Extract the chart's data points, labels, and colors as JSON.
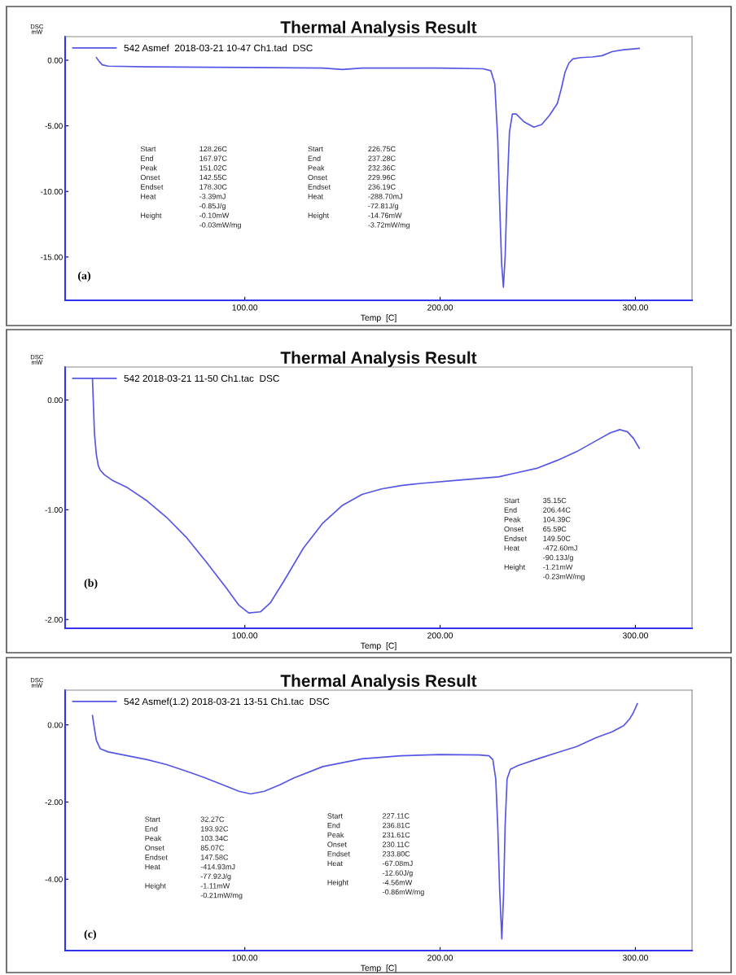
{
  "chart_data": [
    {
      "type": "line",
      "title": "Thermal Analysis Result",
      "xlabel": "Temp  [C]",
      "ylabel": "DSC\nmW",
      "xlim": [
        8,
        329
      ],
      "xticks": [
        {
          "value": 100,
          "label": "100.00"
        },
        {
          "value": 200,
          "label": "200.00"
        },
        {
          "value": 300,
          "label": "300.00"
        }
      ],
      "ylim": [
        -18.3,
        1.8
      ],
      "yticks": [
        {
          "value": 0,
          "label": "0.00"
        },
        {
          "value": -5,
          "label": "-5.00"
        },
        {
          "value": -10,
          "label": "-10.00"
        },
        {
          "value": -15,
          "label": "-15.00"
        }
      ],
      "legend": "top left",
      "grid": false,
      "series": [
        {
          "name": "542 Asmef  2018-03-21 10-47 Ch1.tad  DSC",
          "color": "#5555e6",
          "x": [
            24,
            25.5,
            27,
            30,
            50,
            100,
            140,
            150,
            160,
            170,
            200,
            222,
            226,
            228,
            229.5,
            230.5,
            231.5,
            232.4,
            233.3,
            234.3,
            235.5,
            237,
            239,
            243,
            248,
            252,
            256,
            260,
            262,
            264,
            266,
            268,
            272,
            278,
            283,
            288,
            294,
            302
          ],
          "values": [
            0.2,
            -0.1,
            -0.35,
            -0.45,
            -0.5,
            -0.55,
            -0.6,
            -0.7,
            -0.6,
            -0.6,
            -0.6,
            -0.65,
            -0.8,
            -1.8,
            -6,
            -11,
            -15.5,
            -17.3,
            -15,
            -10,
            -5.5,
            -4.1,
            -4.1,
            -4.7,
            -5.1,
            -4.9,
            -4.2,
            -3.3,
            -2.2,
            -0.9,
            -0.2,
            0.1,
            0.2,
            0.25,
            0.35,
            0.65,
            0.8,
            0.9
          ]
        }
      ],
      "annotations": [
        "Start\nEnd\nPeak\nOnset\nEndset\nHeat\n\nHeight",
        "128.26C\n167.97C\n151.02C\n142.55C\n178.30C\n-3.39mJ\n-0.85J/g\n-0.10mW\n-0.03mW/mg",
        "Start\nEnd\nPeak\nOnset\nEndset\nHeat\n\nHeight",
        "226.75C\n237.28C\n232.36C\n229.96C\n236.19C\n-288.70mJ\n-72.81J/g\n-14.76mW\n-3.72mW/mg",
        "(a)"
      ]
    },
    {
      "type": "line",
      "title": "Thermal Analysis Result",
      "xlabel": "Temp  [C]",
      "ylabel": "DSC\nmW",
      "xlim": [
        8,
        329
      ],
      "xticks": [
        {
          "value": 100,
          "label": "100.00"
        },
        {
          "value": 200,
          "label": "200.00"
        },
        {
          "value": 300,
          "label": "300.00"
        }
      ],
      "ylim": [
        -2.08,
        0.3
      ],
      "yticks": [
        {
          "value": 0,
          "label": "0.00"
        },
        {
          "value": -1,
          "label": "-1.00"
        },
        {
          "value": -2,
          "label": "-2.00"
        }
      ],
      "legend": "top left",
      "grid": false,
      "series": [
        {
          "name": "542 2018-03-21 11-50 Ch1.tac  DSC",
          "color": "#5555e6",
          "x": [
            22,
            22.5,
            23,
            24,
            25,
            26,
            28,
            32,
            40,
            50,
            60,
            70,
            80,
            90,
            97,
            102,
            108,
            113,
            120,
            130,
            140,
            150,
            160,
            170,
            180,
            190,
            210,
            230,
            240,
            250,
            260,
            270,
            280,
            287,
            292,
            296,
            299,
            302
          ],
          "values": [
            0.19,
            -0.05,
            -0.3,
            -0.5,
            -0.6,
            -0.64,
            -0.68,
            -0.73,
            -0.8,
            -0.92,
            -1.07,
            -1.25,
            -1.47,
            -1.7,
            -1.87,
            -1.94,
            -1.93,
            -1.85,
            -1.65,
            -1.35,
            -1.12,
            -0.96,
            -0.86,
            -0.81,
            -0.78,
            -0.76,
            -0.73,
            -0.7,
            -0.66,
            -0.62,
            -0.55,
            -0.47,
            -0.37,
            -0.3,
            -0.27,
            -0.29,
            -0.35,
            -0.44
          ]
        }
      ],
      "annotations": [
        "Start\nEnd\nPeak\nOnset\nEndset\nHeat\n\nHeight",
        "35.15C\n206.44C\n104.39C\n65.59C\n149.50C\n-472.60mJ\n-90.13J/g\n-1.21mW\n-0.23mW/mg",
        "(b)"
      ]
    },
    {
      "type": "line",
      "title": "Thermal Analysis Result",
      "xlabel": "Temp  [C]",
      "ylabel": "DSC\nmW",
      "xlim": [
        8,
        329
      ],
      "xticks": [
        {
          "value": 100,
          "label": "100.00"
        },
        {
          "value": 200,
          "label": "200.00"
        },
        {
          "value": 300,
          "label": "300.00"
        }
      ],
      "ylim": [
        -5.85,
        0.9
      ],
      "yticks": [
        {
          "value": 0,
          "label": "0.00"
        },
        {
          "value": -2,
          "label": "-2.00"
        },
        {
          "value": -4,
          "label": "-4.00"
        }
      ],
      "legend": "top left",
      "grid": false,
      "series": [
        {
          "name": "542 Asmef(1.2) 2018-03-21 13-51 Ch1.tac  DSC",
          "color": "#5555e6",
          "x": [
            22,
            23,
            24,
            26,
            30,
            40,
            50,
            60,
            70,
            80,
            90,
            97,
            103,
            110,
            118,
            125,
            140,
            160,
            180,
            200,
            220,
            225,
            227,
            228.5,
            229.5,
            230.5,
            231.6,
            232.5,
            233.3,
            234.3,
            236,
            240,
            250,
            260,
            270,
            280,
            288,
            294,
            297,
            299,
            301
          ],
          "values": [
            0.24,
            -0.1,
            -0.4,
            -0.62,
            -0.7,
            -0.8,
            -0.9,
            -1.03,
            -1.2,
            -1.38,
            -1.58,
            -1.72,
            -1.79,
            -1.72,
            -1.55,
            -1.38,
            -1.08,
            -0.88,
            -0.8,
            -0.77,
            -0.78,
            -0.8,
            -0.9,
            -1.4,
            -2.6,
            -4.3,
            -5.55,
            -4.4,
            -2.6,
            -1.4,
            -1.15,
            -1.05,
            -0.88,
            -0.72,
            -0.56,
            -0.33,
            -0.18,
            -0.02,
            0.15,
            0.32,
            0.55
          ]
        }
      ],
      "annotations": [
        "Start\nEnd\nPeak\nOnset\nEndset\nHeat\n\nHeight",
        "32.27C\n193.92C\n103.34C\n85.07C\n147.58C\n-414.93mJ\n-77.92J/g\n-1.11mW\n-0.21mW/mg",
        "Start\nEnd\nPeak\nOnset\nEndset\nHeat\n\nHeight",
        "227.11C\n236.81C\n231.61C\n230.11C\n233.80C\n-67.08mJ\n-12.60J/g\n-4.56mW\n-0.86mW/mg",
        "(c)"
      ]
    }
  ]
}
